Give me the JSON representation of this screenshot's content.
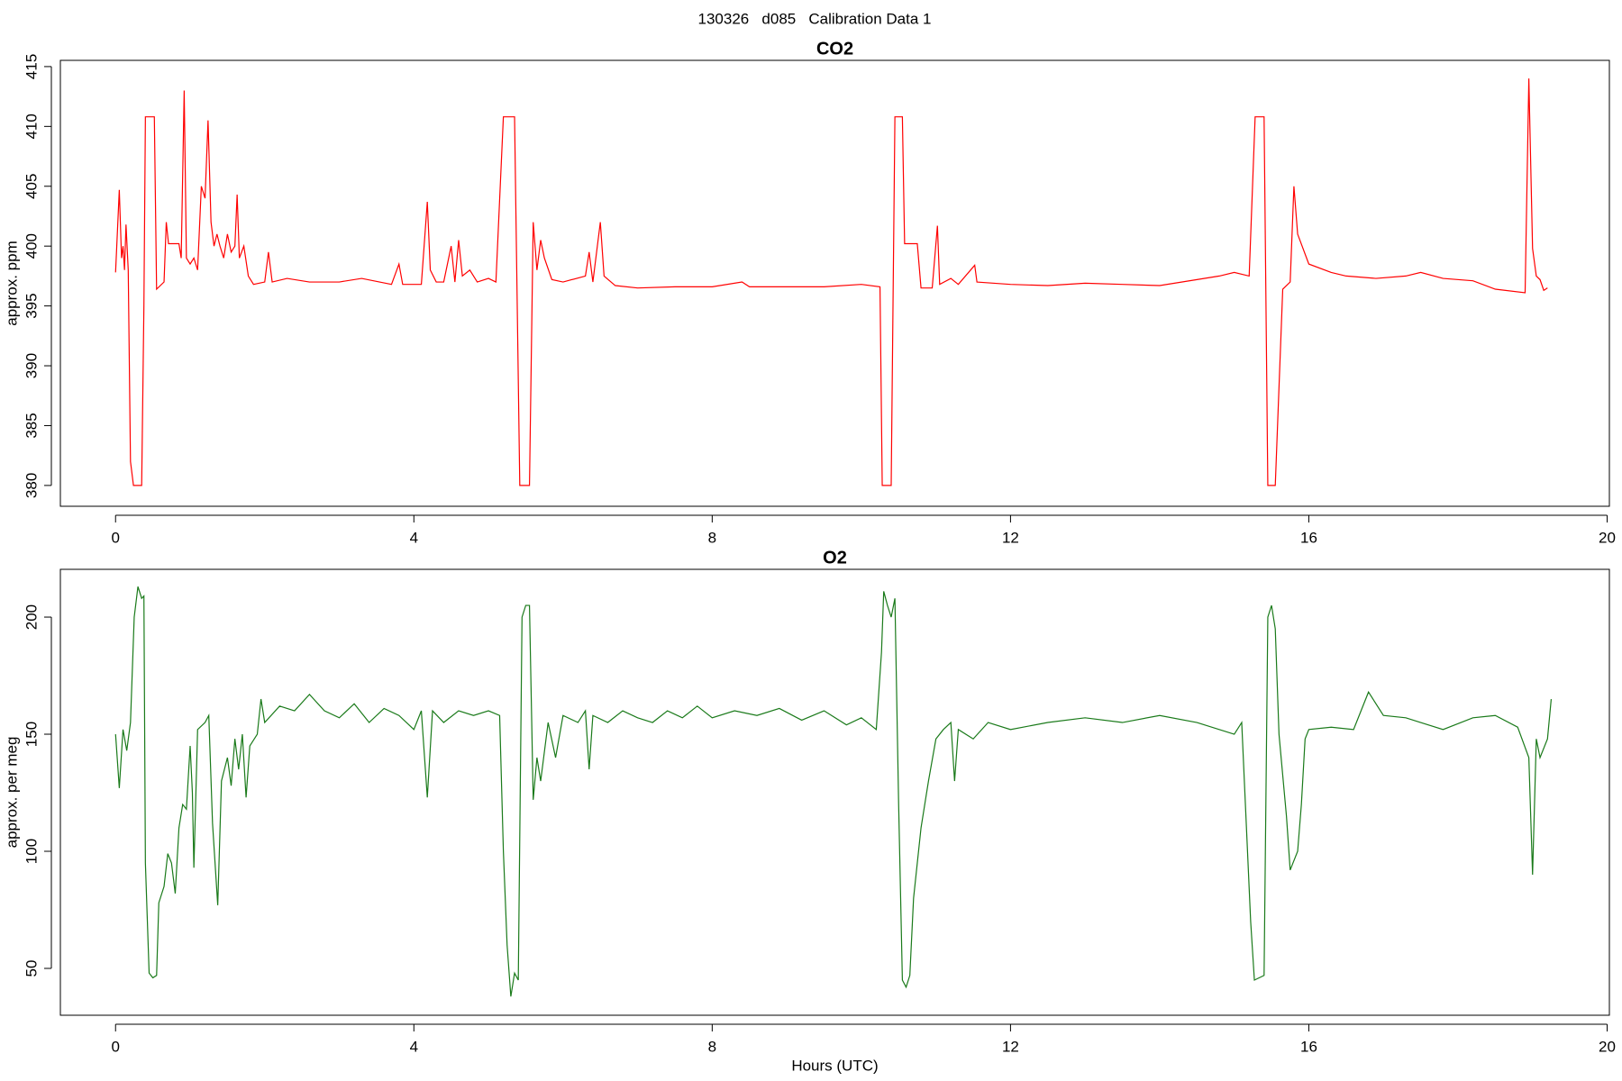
{
  "title": "130326   d085   Calibration Data 1",
  "chart_data": [
    {
      "type": "line",
      "title": "CO2",
      "ylabel": "approx. ppm",
      "xlim": [
        -0.74,
        20.03
      ],
      "xticks": [
        0,
        4,
        8,
        12,
        16,
        20
      ],
      "ylim": [
        378.26,
        415.52
      ],
      "yticks": [
        380,
        385,
        390,
        395,
        400,
        405,
        410,
        415
      ],
      "series": [
        {
          "color": "#ff0000",
          "x": [
            0,
            0.05,
            0.08,
            0.1,
            0.12,
            0.14,
            0.17,
            0.2,
            0.24,
            0.35,
            0.38,
            0.4,
            0.52,
            0.55,
            0.65,
            0.68,
            0.71,
            0.85,
            0.88,
            0.92,
            0.95,
            1.0,
            1.05,
            1.1,
            1.15,
            1.2,
            1.24,
            1.28,
            1.32,
            1.36,
            1.4,
            1.45,
            1.5,
            1.55,
            1.6,
            1.63,
            1.66,
            1.72,
            1.78,
            1.85,
            2.0,
            2.05,
            2.1,
            2.3,
            2.6,
            3.0,
            3.3,
            3.7,
            3.8,
            3.85,
            4.1,
            4.18,
            4.22,
            4.3,
            4.4,
            4.5,
            4.55,
            4.6,
            4.65,
            4.75,
            4.85,
            5.0,
            5.1,
            5.2,
            5.35,
            5.42,
            5.55,
            5.6,
            5.65,
            5.7,
            5.75,
            5.85,
            6.0,
            6.3,
            6.35,
            6.4,
            6.5,
            6.55,
            6.7,
            7.0,
            7.5,
            8.0,
            8.4,
            8.5,
            9.0,
            9.5,
            10.0,
            10.25,
            10.28,
            10.4,
            10.45,
            10.55,
            10.58,
            10.75,
            10.8,
            10.95,
            11.02,
            11.05,
            11.2,
            11.3,
            11.52,
            11.55,
            12,
            12.5,
            13,
            13.5,
            14,
            14.5,
            14.8,
            15.0,
            15.2,
            15.28,
            15.4,
            15.45,
            15.55,
            15.65,
            15.75,
            15.8,
            15.85,
            16.0,
            16.3,
            16.5,
            16.9,
            17.3,
            17.5,
            17.8,
            18.2,
            18.5,
            18.9,
            18.95,
            19.0,
            19.05,
            19.1,
            19.15,
            19.2
          ],
          "values": [
            397.8,
            404.7,
            399,
            400,
            398,
            401.8,
            398,
            382,
            380,
            380,
            395,
            410.8,
            410.8,
            396.4,
            397,
            402,
            400.2,
            400.2,
            399,
            413,
            399,
            398.5,
            399,
            398,
            405,
            404,
            410.5,
            402,
            400,
            401,
            400,
            399,
            401,
            399.5,
            400,
            404.3,
            399,
            400,
            397.5,
            396.8,
            397,
            399.5,
            397,
            397.3,
            397,
            397,
            397.3,
            396.8,
            398.5,
            396.8,
            396.8,
            403.7,
            398,
            397,
            397,
            400,
            397,
            400.5,
            397.5,
            398,
            397,
            397.3,
            397,
            410.8,
            410.8,
            380,
            380,
            402,
            398,
            400.5,
            399,
            397.2,
            397,
            397.5,
            399.5,
            397,
            402,
            397.5,
            396.7,
            396.5,
            396.6,
            396.6,
            397,
            396.6,
            396.6,
            396.6,
            396.8,
            396.6,
            380,
            380,
            410.8,
            410.8,
            400.2,
            400.2,
            396.5,
            396.5,
            401.7,
            396.8,
            397.3,
            396.8,
            398.4,
            397,
            396.8,
            396.7,
            396.9,
            396.8,
            396.7,
            397.2,
            397.5,
            397.8,
            397.5,
            410.8,
            410.8,
            380,
            380,
            396.4,
            397,
            405,
            401,
            398.5,
            397.8,
            397.5,
            397.3,
            397.5,
            397.8,
            397.3,
            397.1,
            396.4,
            396.1,
            414,
            399.8,
            397.5,
            397.2,
            396.3,
            396.5
          ]
        }
      ]
    },
    {
      "type": "line",
      "title": "O2",
      "ylabel": "approx. per meg",
      "xlabel": "Hours (UTC)",
      "xlim": [
        -0.74,
        20.03
      ],
      "xticks": [
        0,
        4,
        8,
        12,
        16,
        20
      ],
      "ylim": [
        30,
        220.4
      ],
      "yticks": [
        50,
        100,
        150,
        200
      ],
      "series": [
        {
          "color": "#1a7a1a",
          "x": [
            0,
            0.05,
            0.1,
            0.15,
            0.2,
            0.25,
            0.3,
            0.35,
            0.38,
            0.4,
            0.45,
            0.5,
            0.55,
            0.58,
            0.65,
            0.7,
            0.75,
            0.8,
            0.85,
            0.9,
            0.95,
            1.0,
            1.03,
            1.05,
            1.1,
            1.2,
            1.25,
            1.3,
            1.37,
            1.42,
            1.5,
            1.55,
            1.6,
            1.65,
            1.7,
            1.75,
            1.8,
            1.9,
            1.95,
            2.0,
            2.2,
            2.4,
            2.6,
            2.8,
            3.0,
            3.2,
            3.4,
            3.6,
            3.8,
            4.0,
            4.1,
            4.18,
            4.25,
            4.4,
            4.6,
            4.8,
            5.0,
            5.15,
            5.2,
            5.25,
            5.3,
            5.35,
            5.4,
            5.45,
            5.5,
            5.55,
            5.6,
            5.65,
            5.7,
            5.8,
            5.9,
            6.0,
            6.2,
            6.3,
            6.35,
            6.4,
            6.6,
            6.8,
            7,
            7.2,
            7.4,
            7.6,
            7.8,
            8.0,
            8.3,
            8.6,
            8.9,
            9.2,
            9.5,
            9.8,
            10.0,
            10.2,
            10.27,
            10.3,
            10.35,
            10.4,
            10.45,
            10.5,
            10.55,
            10.6,
            10.65,
            10.7,
            10.8,
            10.9,
            11.0,
            11.1,
            11.2,
            11.25,
            11.3,
            11.5,
            11.7,
            12,
            12.5,
            13,
            13.5,
            14,
            14.5,
            15,
            15.1,
            15.22,
            15.27,
            15.4,
            15.45,
            15.5,
            15.55,
            15.6,
            15.7,
            15.75,
            15.85,
            15.9,
            15.95,
            16.0,
            16.3,
            16.6,
            16.8,
            17.0,
            17.3,
            17.5,
            17.8,
            18.2,
            18.5,
            18.8,
            18.95,
            19.0,
            19.05,
            19.1,
            19.2,
            19.25
          ],
          "values": [
            150,
            127,
            152,
            143,
            155,
            200,
            213,
            208,
            209,
            95,
            48,
            46,
            47,
            78,
            85,
            99,
            95,
            82,
            110,
            120,
            118,
            145,
            125,
            93,
            152,
            155,
            158,
            112,
            77,
            130,
            140,
            128,
            148,
            135,
            150,
            123,
            145,
            150,
            165,
            155,
            162,
            160,
            167,
            160,
            157,
            163,
            155,
            161,
            158,
            152,
            160,
            123,
            160,
            155,
            160,
            158,
            160,
            158,
            100,
            60,
            38,
            48,
            45,
            200,
            205,
            205,
            122,
            140,
            130,
            155,
            140,
            158,
            155,
            160,
            135,
            158,
            155,
            160,
            157,
            155,
            160,
            157,
            162,
            157,
            160,
            158,
            161,
            156,
            160,
            154,
            157,
            152,
            185,
            211,
            205,
            200,
            208,
            120,
            45,
            42,
            47,
            80,
            110,
            130,
            148,
            152,
            155,
            130,
            152,
            148,
            155,
            152,
            155,
            157,
            155,
            158,
            155,
            150,
            155,
            70,
            45,
            47,
            200,
            205,
            195,
            150,
            115,
            92,
            100,
            120,
            148,
            152,
            153,
            152,
            168,
            158,
            157,
            155,
            152,
            157,
            158,
            153,
            140,
            90,
            148,
            140,
            148,
            165
          ]
        }
      ]
    }
  ]
}
